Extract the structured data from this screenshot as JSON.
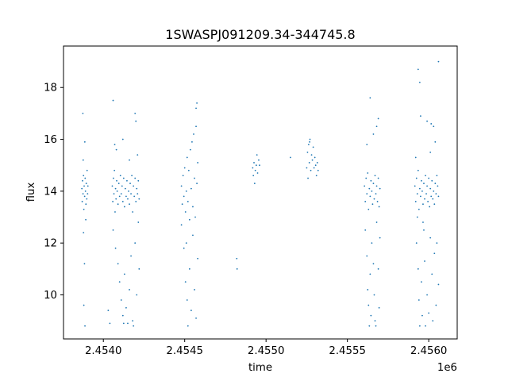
{
  "chart_data": {
    "type": "scatter",
    "title": "1SWASPJ091209.34-344745.8",
    "xlabel": "time",
    "ylabel": "flux",
    "x_offset_label": "1e6",
    "xlim": [
      2453755,
      2456175
    ],
    "ylim": [
      8.3,
      19.6
    ],
    "x_ticks": [
      2454000,
      2454500,
      2455000,
      2455500,
      2456000
    ],
    "x_tick_labels": [
      "2.4540",
      "2.4545",
      "2.4550",
      "2.4555",
      "2.4560"
    ],
    "y_ticks": [
      10,
      12,
      14,
      16,
      18
    ],
    "y_tick_labels": [
      "10",
      "12",
      "14",
      "16",
      "18"
    ],
    "grid": false,
    "marker_color": "#1f77b4",
    "series": [
      {
        "points": [
          [
            2453868,
            14.1
          ],
          [
            2453870,
            13.6
          ],
          [
            2453872,
            14.4
          ],
          [
            2453875,
            13.9
          ],
          [
            2453878,
            14.6
          ],
          [
            2453880,
            13.3
          ],
          [
            2453882,
            14.2
          ],
          [
            2453885,
            13.8
          ],
          [
            2453888,
            14.5
          ],
          [
            2453890,
            14.0
          ],
          [
            2453893,
            13.5
          ],
          [
            2453895,
            14.3
          ],
          [
            2453898,
            13.7
          ],
          [
            2453900,
            14.8
          ],
          [
            2453903,
            13.9
          ],
          [
            2453905,
            14.2
          ],
          [
            2453874,
            17.0
          ],
          [
            2453886,
            15.9
          ],
          [
            2453878,
            12.4
          ],
          [
            2453884,
            11.2
          ],
          [
            2453880,
            9.6
          ],
          [
            2453887,
            8.8
          ],
          [
            2453892,
            12.9
          ],
          [
            2453876,
            15.2
          ],
          [
            2454055,
            14.2
          ],
          [
            2454058,
            13.6
          ],
          [
            2454062,
            14.5
          ],
          [
            2454065,
            13.9
          ],
          [
            2454068,
            14.8
          ],
          [
            2454072,
            13.2
          ],
          [
            2454075,
            14.1
          ],
          [
            2454078,
            13.7
          ],
          [
            2454082,
            14.4
          ],
          [
            2454085,
            14.0
          ],
          [
            2454090,
            13.5
          ],
          [
            2454095,
            14.3
          ],
          [
            2454100,
            13.8
          ],
          [
            2454105,
            14.6
          ],
          [
            2454110,
            13.9
          ],
          [
            2454115,
            14.2
          ],
          [
            2454120,
            13.6
          ],
          [
            2454125,
            14.5
          ],
          [
            2454130,
            13.4
          ],
          [
            2454135,
            14.1
          ],
          [
            2454140,
            13.8
          ],
          [
            2454145,
            14.4
          ],
          [
            2454150,
            13.7
          ],
          [
            2454155,
            14.0
          ],
          [
            2454160,
            13.5
          ],
          [
            2454165,
            14.3
          ],
          [
            2454170,
            13.9
          ],
          [
            2454175,
            14.6
          ],
          [
            2454180,
            13.2
          ],
          [
            2454185,
            14.2
          ],
          [
            2454190,
            13.8
          ],
          [
            2454195,
            14.5
          ],
          [
            2454200,
            13.6
          ],
          [
            2454205,
            14.1
          ],
          [
            2454210,
            13.9
          ],
          [
            2454215,
            14.4
          ],
          [
            2454220,
            13.7
          ],
          [
            2454060,
            17.5
          ],
          [
            2454070,
            15.8
          ],
          [
            2454080,
            15.6
          ],
          [
            2454120,
            16.0
          ],
          [
            2454160,
            15.2
          ],
          [
            2454195,
            17.0
          ],
          [
            2454200,
            16.7
          ],
          [
            2454210,
            15.4
          ],
          [
            2454060,
            12.5
          ],
          [
            2454075,
            11.8
          ],
          [
            2454090,
            11.2
          ],
          [
            2454100,
            10.5
          ],
          [
            2454110,
            9.8
          ],
          [
            2454120,
            9.2
          ],
          [
            2454125,
            8.9
          ],
          [
            2454130,
            10.8
          ],
          [
            2454140,
            9.5
          ],
          [
            2454150,
            8.9
          ],
          [
            2454160,
            10.2
          ],
          [
            2454170,
            11.5
          ],
          [
            2454180,
            9.0
          ],
          [
            2454185,
            8.8
          ],
          [
            2454195,
            12.0
          ],
          [
            2454205,
            10.0
          ],
          [
            2454215,
            12.8
          ],
          [
            2454220,
            11.0
          ],
          [
            2454040,
            8.9
          ],
          [
            2454030,
            9.4
          ],
          [
            2454480,
            14.2
          ],
          [
            2454485,
            13.5
          ],
          [
            2454490,
            14.6
          ],
          [
            2454495,
            13.8
          ],
          [
            2454500,
            14.9
          ],
          [
            2454505,
            13.2
          ],
          [
            2454510,
            14.0
          ],
          [
            2454515,
            15.3
          ],
          [
            2454520,
            13.6
          ],
          [
            2454525,
            14.8
          ],
          [
            2454530,
            12.9
          ],
          [
            2454535,
            15.6
          ],
          [
            2454540,
            14.1
          ],
          [
            2454545,
            15.9
          ],
          [
            2454550,
            13.4
          ],
          [
            2454555,
            16.2
          ],
          [
            2454560,
            14.5
          ],
          [
            2454565,
            13.0
          ],
          [
            2454570,
            16.5
          ],
          [
            2454575,
            14.3
          ],
          [
            2454580,
            15.1
          ],
          [
            2454575,
            17.4
          ],
          [
            2454570,
            17.2
          ],
          [
            2454495,
            11.8
          ],
          [
            2454505,
            10.5
          ],
          [
            2454515,
            9.8
          ],
          [
            2454520,
            8.8
          ],
          [
            2454530,
            11.0
          ],
          [
            2454540,
            9.4
          ],
          [
            2454550,
            12.3
          ],
          [
            2454560,
            10.2
          ],
          [
            2454570,
            9.1
          ],
          [
            2454580,
            11.4
          ],
          [
            2454480,
            12.7
          ],
          [
            2454510,
            12.0
          ],
          [
            2454820,
            11.4
          ],
          [
            2454822,
            11.0
          ],
          [
            2454918,
            14.9
          ],
          [
            2454922,
            14.6
          ],
          [
            2454926,
            15.1
          ],
          [
            2454930,
            14.3
          ],
          [
            2454934,
            14.8
          ],
          [
            2454940,
            15.0
          ],
          [
            2454944,
            15.4
          ],
          [
            2454948,
            14.7
          ],
          [
            2454955,
            15.2
          ],
          [
            2454960,
            15.0
          ],
          [
            2455150,
            15.3
          ],
          [
            2455250,
            14.9
          ],
          [
            2455255,
            15.5
          ],
          [
            2455258,
            14.5
          ],
          [
            2455262,
            15.8
          ],
          [
            2455266,
            15.1
          ],
          [
            2455270,
            16.0
          ],
          [
            2455275,
            14.8
          ],
          [
            2455280,
            15.4
          ],
          [
            2455285,
            15.2
          ],
          [
            2455290,
            15.7
          ],
          [
            2455295,
            14.9
          ],
          [
            2455300,
            15.3
          ],
          [
            2455305,
            15.0
          ],
          [
            2455310,
            14.6
          ],
          [
            2455315,
            15.1
          ],
          [
            2455320,
            14.8
          ],
          [
            2455268,
            15.9
          ],
          [
            2455605,
            14.2
          ],
          [
            2455610,
            13.6
          ],
          [
            2455615,
            14.5
          ],
          [
            2455620,
            13.9
          ],
          [
            2455625,
            14.7
          ],
          [
            2455630,
            13.3
          ],
          [
            2455635,
            14.1
          ],
          [
            2455640,
            13.8
          ],
          [
            2455645,
            14.4
          ],
          [
            2455650,
            14.0
          ],
          [
            2455655,
            13.5
          ],
          [
            2455660,
            14.3
          ],
          [
            2455665,
            13.7
          ],
          [
            2455670,
            14.6
          ],
          [
            2455675,
            13.9
          ],
          [
            2455680,
            14.2
          ],
          [
            2455685,
            13.6
          ],
          [
            2455690,
            14.5
          ],
          [
            2455695,
            13.4
          ],
          [
            2455700,
            14.1
          ],
          [
            2455640,
            17.6
          ],
          [
            2455660,
            16.2
          ],
          [
            2455680,
            16.5
          ],
          [
            2455690,
            16.8
          ],
          [
            2455620,
            15.8
          ],
          [
            2455610,
            12.5
          ],
          [
            2455620,
            11.5
          ],
          [
            2455625,
            10.2
          ],
          [
            2455630,
            9.6
          ],
          [
            2455635,
            8.8
          ],
          [
            2455640,
            10.8
          ],
          [
            2455645,
            9.2
          ],
          [
            2455650,
            12.0
          ],
          [
            2455660,
            11.2
          ],
          [
            2455665,
            10.0
          ],
          [
            2455670,
            9.0
          ],
          [
            2455675,
            8.8
          ],
          [
            2455680,
            12.8
          ],
          [
            2455690,
            11.0
          ],
          [
            2455695,
            9.5
          ],
          [
            2455700,
            12.2
          ],
          [
            2455915,
            14.2
          ],
          [
            2455920,
            13.6
          ],
          [
            2455925,
            14.5
          ],
          [
            2455930,
            13.9
          ],
          [
            2455935,
            14.8
          ],
          [
            2455940,
            13.3
          ],
          [
            2455945,
            14.1
          ],
          [
            2455950,
            13.8
          ],
          [
            2455955,
            14.4
          ],
          [
            2455960,
            14.0
          ],
          [
            2455965,
            13.5
          ],
          [
            2455970,
            14.3
          ],
          [
            2455975,
            13.7
          ],
          [
            2455980,
            14.6
          ],
          [
            2455985,
            13.9
          ],
          [
            2455990,
            14.2
          ],
          [
            2455995,
            13.6
          ],
          [
            2456000,
            14.5
          ],
          [
            2456005,
            13.4
          ],
          [
            2456010,
            14.1
          ],
          [
            2456015,
            13.8
          ],
          [
            2456020,
            14.4
          ],
          [
            2456025,
            13.7
          ],
          [
            2456030,
            14.0
          ],
          [
            2456035,
            13.5
          ],
          [
            2456040,
            14.3
          ],
          [
            2456045,
            13.9
          ],
          [
            2456050,
            14.6
          ],
          [
            2456055,
            14.2
          ],
          [
            2456060,
            13.8
          ],
          [
            2455935,
            18.7
          ],
          [
            2455945,
            18.2
          ],
          [
            2456060,
            19.0
          ],
          [
            2455990,
            16.7
          ],
          [
            2456015,
            16.6
          ],
          [
            2456030,
            16.5
          ],
          [
            2455950,
            16.9
          ],
          [
            2456010,
            15.5
          ],
          [
            2456040,
            15.9
          ],
          [
            2455920,
            15.3
          ],
          [
            2455925,
            12.0
          ],
          [
            2455935,
            11.0
          ],
          [
            2455940,
            9.8
          ],
          [
            2455945,
            8.8
          ],
          [
            2455955,
            10.5
          ],
          [
            2455960,
            9.2
          ],
          [
            2455970,
            12.5
          ],
          [
            2455975,
            11.3
          ],
          [
            2455980,
            8.8
          ],
          [
            2455990,
            10.0
          ],
          [
            2456000,
            9.3
          ],
          [
            2456010,
            12.2
          ],
          [
            2456020,
            10.8
          ],
          [
            2456025,
            9.0
          ],
          [
            2456035,
            11.6
          ],
          [
            2456045,
            9.6
          ],
          [
            2456050,
            12.0
          ],
          [
            2456060,
            10.4
          ],
          [
            2455930,
            13.0
          ],
          [
            2455965,
            12.8
          ]
        ]
      }
    ]
  }
}
